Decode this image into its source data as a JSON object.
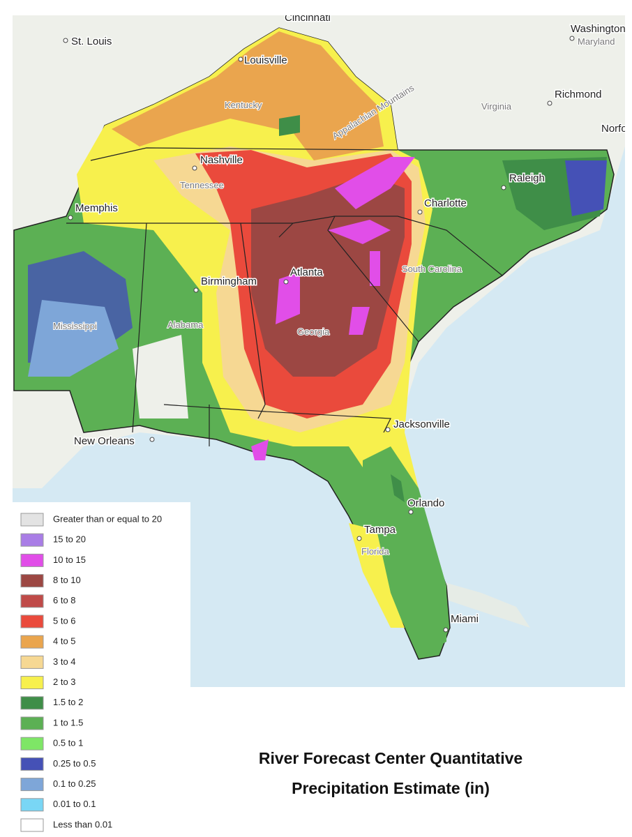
{
  "map": {
    "labels": [
      {
        "text": "Cincinnati"
      },
      {
        "text": "St. Louis"
      },
      {
        "text": "Washington"
      },
      {
        "text": "Maryland"
      },
      {
        "text": "Louisville"
      },
      {
        "text": "Kentucky"
      },
      {
        "text": "Appalachian Mountains"
      },
      {
        "text": "Virginia"
      },
      {
        "text": "Richmond"
      },
      {
        "text": "Norfolk"
      },
      {
        "text": "Nashville"
      },
      {
        "text": "Tennessee"
      },
      {
        "text": "Raleigh"
      },
      {
        "text": "Memphis"
      },
      {
        "text": "Charlotte"
      },
      {
        "text": "Atlanta"
      },
      {
        "text": "Birmingham"
      },
      {
        "text": "South Carolina"
      },
      {
        "text": "Mississippi"
      },
      {
        "text": "Alabama"
      },
      {
        "text": "Georgia"
      },
      {
        "text": "Jacksonville"
      },
      {
        "text": "New Orleans"
      },
      {
        "text": "Orlando"
      },
      {
        "text": "Tampa"
      },
      {
        "text": "Florida"
      },
      {
        "text": "Miami"
      }
    ]
  },
  "legend": {
    "items": [
      {
        "label": "Greater than or equal to 20",
        "color": "#e3e3e3"
      },
      {
        "label": "15 to 20",
        "color": "#a97de6"
      },
      {
        "label": "10 to 15",
        "color": "#e14ee8"
      },
      {
        "label": "8 to 10",
        "color": "#9c4743"
      },
      {
        "label": "6 to 8",
        "color": "#bf4a48"
      },
      {
        "label": "5 to 6",
        "color": "#ea4a3c"
      },
      {
        "label": "4 to 5",
        "color": "#eaa54e"
      },
      {
        "label": "3 to 4",
        "color": "#f6d893"
      },
      {
        "label": "2 to 3",
        "color": "#f7f04d"
      },
      {
        "label": "1.5 to 2",
        "color": "#3f8e48"
      },
      {
        "label": "1 to 1.5",
        "color": "#5cb054"
      },
      {
        "label": "0.5 to 1",
        "color": "#7ee666"
      },
      {
        "label": "0.25 to 0.5",
        "color": "#4551b6"
      },
      {
        "label": "0.1 to 0.25",
        "color": "#7ea6d8"
      },
      {
        "label": "0.01 to 0.1",
        "color": "#79d6f5"
      },
      {
        "label": "Less than 0.01",
        "color": "#ffffff"
      }
    ]
  },
  "title": {
    "lines": [
      "River Forecast Center Quantitative",
      "Precipitation Estimate (in)"
    ]
  }
}
